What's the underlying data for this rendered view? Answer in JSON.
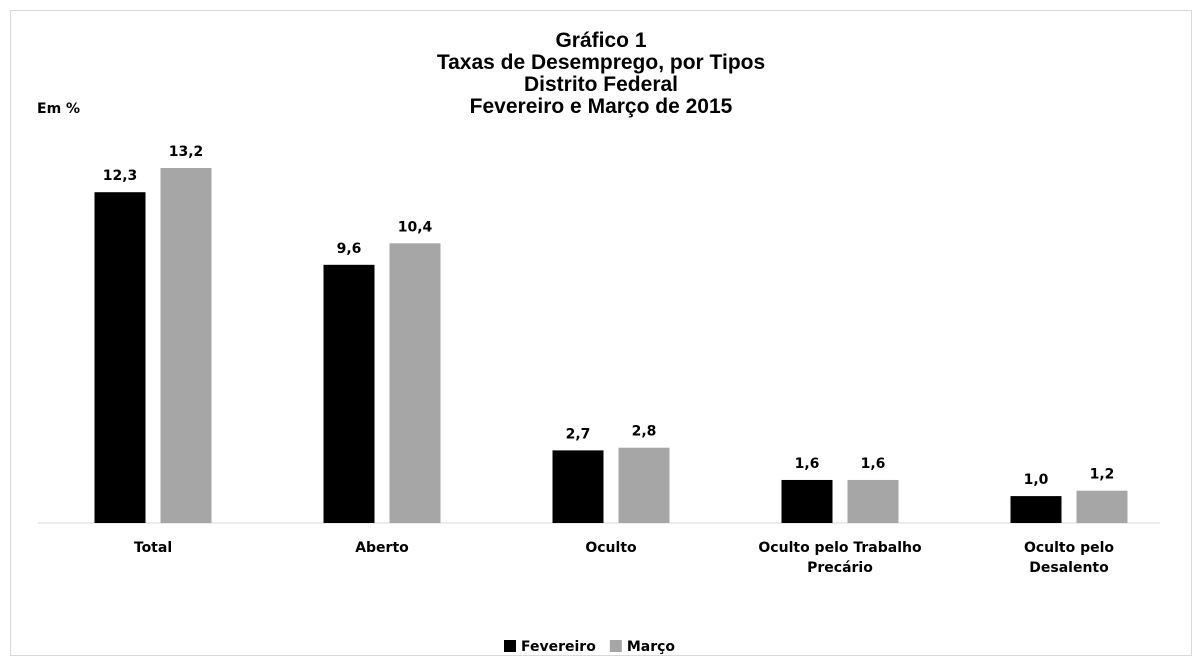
{
  "chart_data": {
    "type": "bar",
    "title": "Gráfico 1\nTaxas de Desemprego, por Tipos\nDistrito Federal\nFevereiro e Março de 2015",
    "unit_label": "Em %",
    "categories": [
      "Total",
      "Aberto",
      "Oculto",
      "Oculto pelo Trabalho\nPrecário",
      "Oculto pelo\nDesalento"
    ],
    "series": [
      {
        "name": "Fevereiro",
        "color": "#000000",
        "values": [
          12.3,
          9.6,
          2.7,
          1.6,
          1.0
        ],
        "value_labels": [
          "12,3",
          "9,6",
          "2,7",
          "1,6",
          "1,0"
        ]
      },
      {
        "name": "Março",
        "color": "#a6a6a6",
        "values": [
          13.2,
          10.4,
          2.8,
          1.6,
          1.2
        ],
        "value_labels": [
          "13,2",
          "10,4",
          "2,8",
          "1,6",
          "1,2"
        ]
      }
    ],
    "legend": "bottom"
  }
}
